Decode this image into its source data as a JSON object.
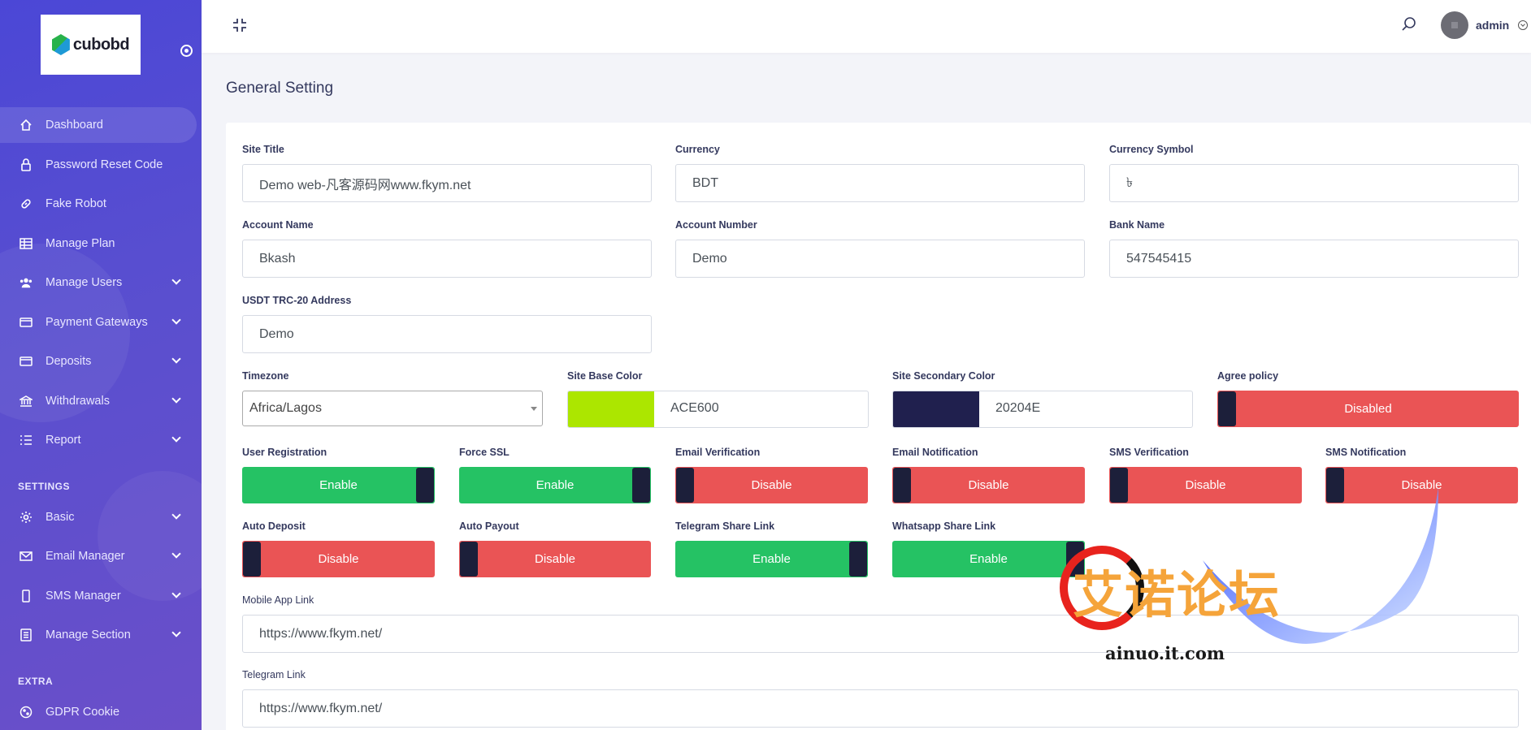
{
  "brand": {
    "logo_text": "cubobd"
  },
  "sidebar": {
    "items": [
      {
        "label": "Dashboard",
        "icon": "home-icon"
      },
      {
        "label": "Password Reset Code",
        "icon": "lock-icon"
      },
      {
        "label": "Fake Robot",
        "icon": "link-icon"
      },
      {
        "label": "Manage Plan",
        "icon": "table-icon"
      },
      {
        "label": "Manage Users",
        "icon": "users-icon"
      },
      {
        "label": "Payment Gateways",
        "icon": "credit-card-icon"
      },
      {
        "label": "Deposits",
        "icon": "wallet-icon"
      },
      {
        "label": "Withdrawals",
        "icon": "bank-icon"
      },
      {
        "label": "Report",
        "icon": "list-icon"
      }
    ],
    "settings_heading": "SETTINGS",
    "settings_items": [
      {
        "label": "Basic",
        "icon": "gear-icon"
      },
      {
        "label": "Email Manager",
        "icon": "envelope-icon"
      },
      {
        "label": "SMS Manager",
        "icon": "phone-icon"
      },
      {
        "label": "Manage Section",
        "icon": "layers-icon"
      }
    ],
    "extra_heading": "EXTRA",
    "extra_items": [
      {
        "label": "GDPR Cookie",
        "icon": "cookie-icon"
      }
    ]
  },
  "topbar": {
    "user_name": "admin"
  },
  "page": {
    "title": "General Setting"
  },
  "form": {
    "site_title": {
      "label": "Site Title",
      "value": "Demo web-凡客源码网www.fkym.net"
    },
    "currency": {
      "label": "Currency",
      "value": "BDT"
    },
    "currency_symbol": {
      "label": "Currency Symbol",
      "value": "৳"
    },
    "account_name": {
      "label": "Account Name",
      "value": "Bkash"
    },
    "account_number": {
      "label": "Account Number",
      "value": "Demo"
    },
    "bank_name": {
      "label": "Bank Name",
      "value": "547545415"
    },
    "usdt_address": {
      "label": "USDT TRC-20 Address",
      "value": "Demo"
    },
    "timezone": {
      "label": "Timezone",
      "value": "Africa/Lagos"
    },
    "base_color": {
      "label": "Site Base Color",
      "value": "ACE600",
      "color": "#ACE600"
    },
    "secondary_color": {
      "label": "Site Secondary Color",
      "value": "20204E",
      "color": "#20204E"
    },
    "agree_policy": {
      "label": "Agree policy",
      "state": "Disabled"
    },
    "toggles": [
      {
        "label": "User Registration",
        "state": "Enable"
      },
      {
        "label": "Force SSL",
        "state": "Enable"
      },
      {
        "label": "Email Verification",
        "state": "Disable"
      },
      {
        "label": "Email Notification",
        "state": "Disable"
      },
      {
        "label": "SMS Verification",
        "state": "Disable"
      },
      {
        "label": "SMS Notification",
        "state": "Disable"
      },
      {
        "label": "Auto Deposit",
        "state": "Disable"
      },
      {
        "label": "Auto Payout",
        "state": "Disable"
      },
      {
        "label": "Telegram Share Link",
        "state": "Enable"
      },
      {
        "label": "Whatsapp Share Link",
        "state": "Enable"
      }
    ],
    "mobile_app_link": {
      "label": "Mobile App Link",
      "value": "https://www.fkym.net/"
    },
    "telegram_link": {
      "label": "Telegram Link",
      "value": "https://www.fkym.net/"
    }
  },
  "watermark": {
    "cn_text": "艾诺论坛",
    "url_text": "ainuo.it.com"
  },
  "colors": {
    "enable": "#25c264",
    "disable": "#ea5455",
    "knob": "#1c1f3a",
    "sidebar": "#5a4fcf"
  }
}
